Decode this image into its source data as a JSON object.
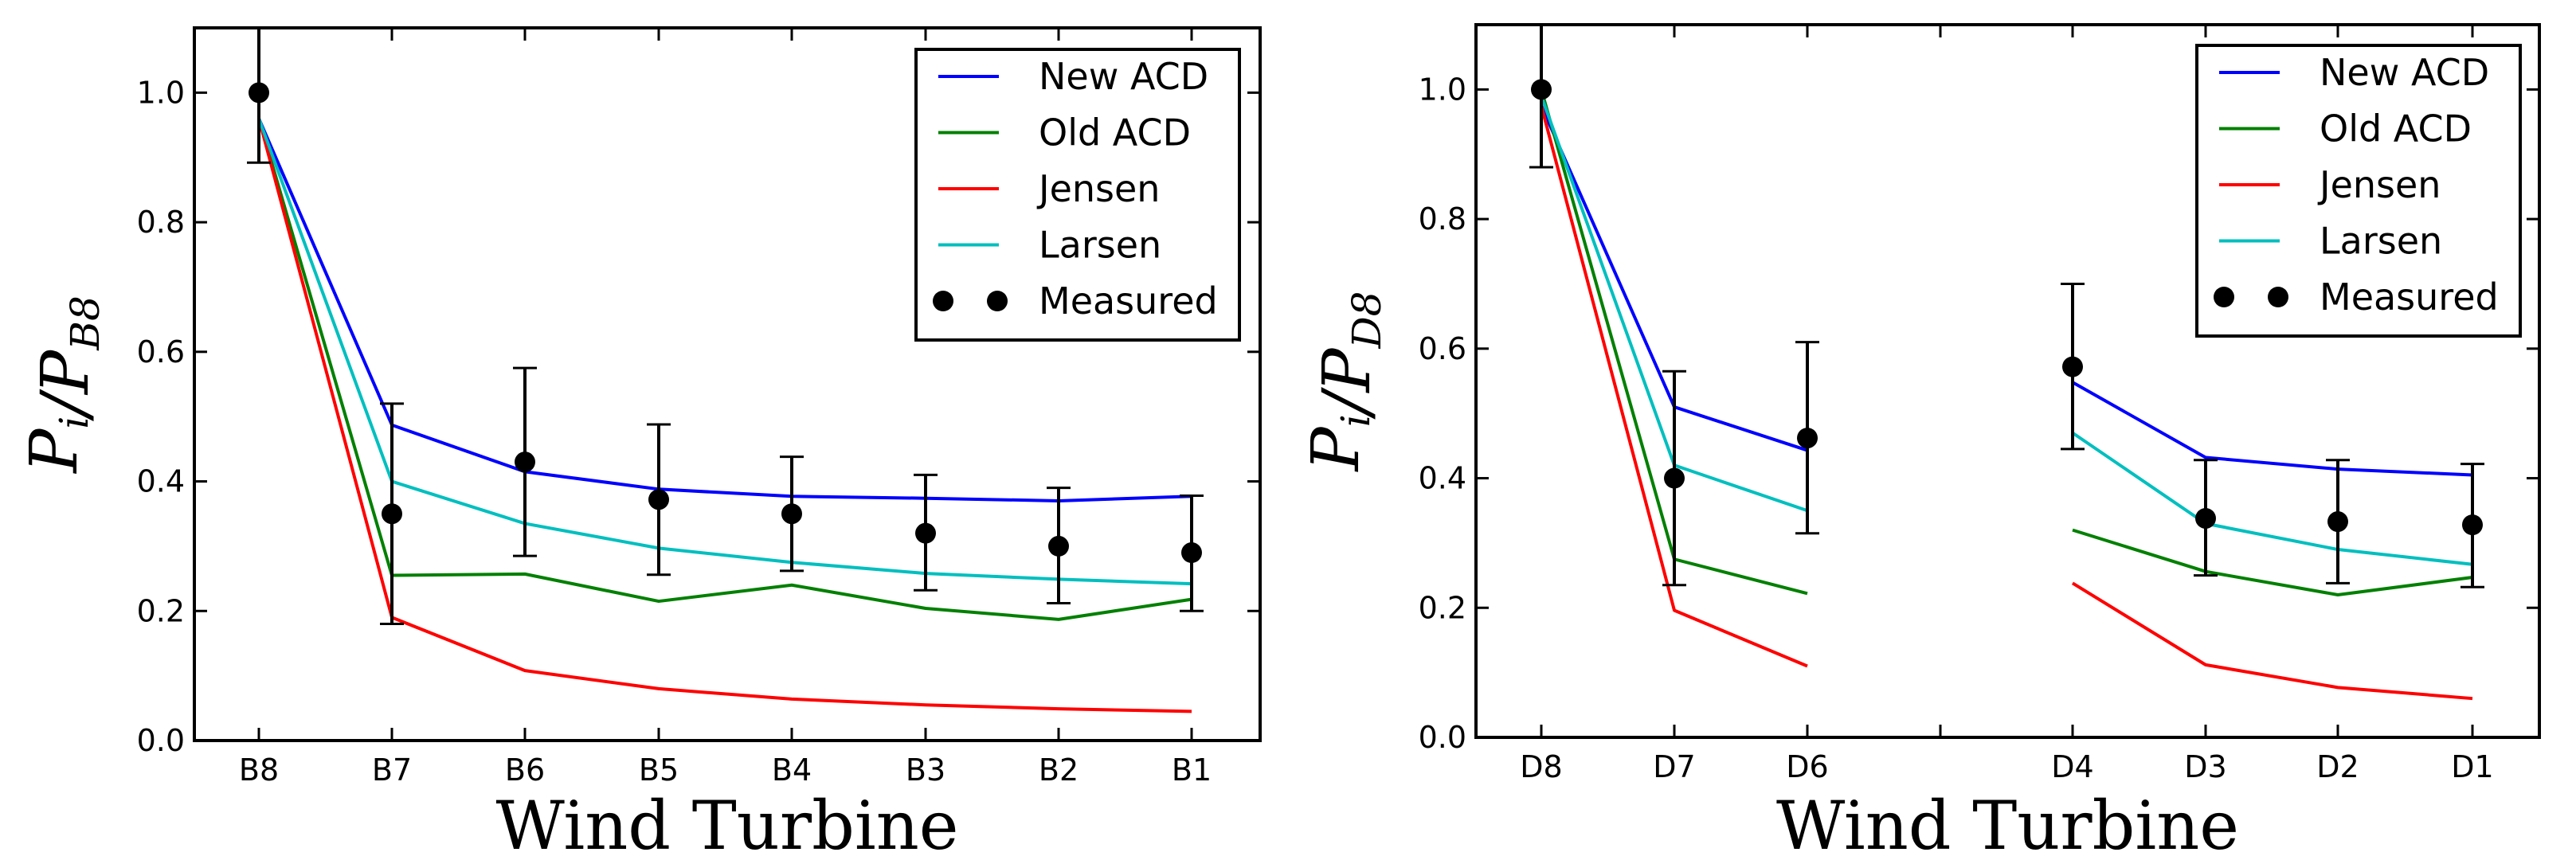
{
  "chart_data": [
    {
      "type": "line",
      "categories": [
        "B8",
        "B7",
        "B6",
        "B5",
        "B4",
        "B3",
        "B2",
        "B1"
      ],
      "ylim": [
        0,
        1.1
      ],
      "yticks": [
        0.0,
        0.2,
        0.4,
        0.6,
        0.8,
        1.0
      ],
      "ytick_labels": [
        "0.0",
        "0.2",
        "0.4",
        "0.6",
        "0.8",
        "1.0"
      ],
      "xlabel": "Wind Turbine",
      "ylabel": {
        "base": "P",
        "num_sub": "i",
        "sep": "/",
        "den_sub": "B8"
      },
      "grid": false,
      "legend": "top-right",
      "series": [
        {
          "name": "New ACD",
          "color": "#0000ff",
          "values": [
            0.96,
            0.487,
            0.415,
            0.388,
            0.377,
            0.374,
            0.37,
            0.377
          ]
        },
        {
          "name": "Old ACD",
          "color": "#008000",
          "values": [
            0.96,
            0.255,
            0.257,
            0.215,
            0.24,
            0.204,
            0.187,
            0.218
          ]
        },
        {
          "name": "Jensen",
          "color": "#ff0000",
          "values": [
            0.96,
            0.19,
            0.108,
            0.08,
            0.064,
            0.055,
            0.049,
            0.045
          ]
        },
        {
          "name": "Larsen",
          "color": "#00bfbf",
          "values": [
            0.96,
            0.4,
            0.335,
            0.297,
            0.275,
            0.258,
            0.249,
            0.242
          ]
        }
      ],
      "measured": {
        "name": "Measured",
        "values": [
          1.0,
          0.35,
          0.43,
          0.372,
          0.35,
          0.32,
          0.3,
          0.29
        ],
        "err_low": [
          0.892,
          0.18,
          0.285,
          0.256,
          0.262,
          0.232,
          0.212,
          0.2
        ],
        "err_high": [
          1.108,
          0.52,
          0.575,
          0.488,
          0.438,
          0.41,
          0.39,
          0.378
        ]
      }
    },
    {
      "type": "line",
      "categories": [
        "D8",
        "D7",
        "D6",
        "",
        "D4",
        "D3",
        "D2",
        "D1"
      ],
      "ylim": [
        0,
        1.1
      ],
      "yticks": [
        0.0,
        0.2,
        0.4,
        0.6,
        0.8,
        1.0
      ],
      "ytick_labels": [
        "0.0",
        "0.2",
        "0.4",
        "0.6",
        "0.8",
        "1.0"
      ],
      "xlabel": "Wind Turbine",
      "ylabel": {
        "base": "P",
        "num_sub": "i",
        "sep": "/",
        "den_sub": "D8"
      },
      "grid": false,
      "legend": "top-right",
      "series": [
        {
          "name": "New ACD",
          "color": "#0000ff",
          "values": [
            0.975,
            0.51,
            0.443,
            null,
            0.548,
            0.432,
            0.414,
            0.405
          ]
        },
        {
          "name": "Old ACD",
          "color": "#008000",
          "values": [
            1.0,
            0.275,
            0.222,
            null,
            0.32,
            0.256,
            0.22,
            0.247
          ]
        },
        {
          "name": "Jensen",
          "color": "#ff0000",
          "values": [
            0.975,
            0.196,
            0.11,
            null,
            0.238,
            0.112,
            0.077,
            0.06
          ]
        },
        {
          "name": "Larsen",
          "color": "#00bfbf",
          "values": [
            0.99,
            0.42,
            0.35,
            null,
            0.47,
            0.33,
            0.29,
            0.267
          ]
        }
      ],
      "measured": {
        "name": "Measured",
        "values": [
          1.0,
          0.4,
          0.462,
          null,
          0.572,
          0.338,
          0.333,
          0.328
        ],
        "err_low": [
          0.88,
          0.235,
          0.315,
          null,
          0.445,
          0.25,
          0.238,
          0.232
        ],
        "err_high": [
          1.12,
          0.565,
          0.61,
          null,
          0.7,
          0.428,
          0.428,
          0.422
        ]
      }
    }
  ]
}
